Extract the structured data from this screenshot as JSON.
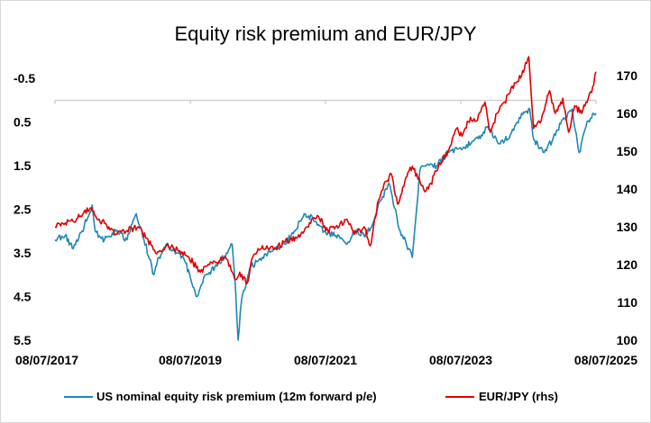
{
  "chart_data": {
    "type": "line",
    "title": "Equity risk premium and EUR/JPY",
    "x_ticks": [
      "08/07/2017",
      "08/07/2019",
      "08/07/2021",
      "08/07/2023",
      "08/07/2025"
    ],
    "y_left": {
      "inverted": true,
      "range": [
        -1.0,
        5.5
      ],
      "ticks": [
        "-0.5",
        "0.5",
        "1.5",
        "2.5",
        "3.5",
        "4.5",
        "5.5"
      ]
    },
    "y_right": {
      "range": [
        100,
        175
      ],
      "ticks": [
        "100",
        "110",
        "120",
        "130",
        "140",
        "150",
        "160",
        "170"
      ]
    },
    "legend_position": "bottom",
    "series": [
      {
        "name": "US nominal equity risk premium (12m forward p/e)",
        "axis": "left",
        "color": "#1f88b4",
        "points": [
          [
            "2017-07-08",
            3.2
          ],
          [
            "2017-09-01",
            3.1
          ],
          [
            "2017-10-15",
            3.4
          ],
          [
            "2017-12-01",
            3.0
          ],
          [
            "2018-01-25",
            2.4
          ],
          [
            "2018-02-10",
            3.0
          ],
          [
            "2018-04-01",
            3.2
          ],
          [
            "2018-06-01",
            3.0
          ],
          [
            "2018-08-01",
            3.2
          ],
          [
            "2018-09-20",
            2.6
          ],
          [
            "2018-10-20",
            3.0
          ],
          [
            "2018-12-24",
            4.0
          ],
          [
            "2019-01-20",
            3.6
          ],
          [
            "2019-03-01",
            3.3
          ],
          [
            "2019-05-01",
            3.5
          ],
          [
            "2019-06-01",
            3.6
          ],
          [
            "2019-08-15",
            4.5
          ],
          [
            "2019-10-01",
            4.0
          ],
          [
            "2019-12-01",
            3.8
          ],
          [
            "2020-01-20",
            3.5
          ],
          [
            "2020-02-20",
            3.3
          ],
          [
            "2020-03-10",
            4.4
          ],
          [
            "2020-03-23",
            5.5
          ],
          [
            "2020-04-10",
            4.6
          ],
          [
            "2020-06-01",
            3.8
          ],
          [
            "2020-08-01",
            3.6
          ],
          [
            "2020-10-01",
            3.4
          ],
          [
            "2020-12-01",
            3.3
          ],
          [
            "2021-01-20",
            3.0
          ],
          [
            "2021-03-15",
            2.6
          ],
          [
            "2021-05-01",
            2.7
          ],
          [
            "2021-07-01",
            3.0
          ],
          [
            "2021-09-01",
            3.1
          ],
          [
            "2021-11-01",
            3.3
          ],
          [
            "2021-12-15",
            3.0
          ],
          [
            "2022-02-01",
            3.1
          ],
          [
            "2022-03-15",
            2.9
          ],
          [
            "2022-05-01",
            2.3
          ],
          [
            "2022-06-16",
            1.9
          ],
          [
            "2022-08-15",
            3.0
          ],
          [
            "2022-10-01",
            3.4
          ],
          [
            "2022-10-20",
            3.6
          ],
          [
            "2022-11-30",
            1.6
          ],
          [
            "2023-01-01",
            1.5
          ],
          [
            "2023-03-01",
            1.5
          ],
          [
            "2023-05-01",
            1.2
          ],
          [
            "2023-07-01",
            1.1
          ],
          [
            "2023-09-01",
            1.0
          ],
          [
            "2023-10-27",
            0.8
          ],
          [
            "2023-12-01",
            0.6
          ],
          [
            "2024-02-01",
            1.0
          ],
          [
            "2024-04-01",
            0.8
          ],
          [
            "2024-06-01",
            0.3
          ],
          [
            "2024-07-15",
            0.2
          ],
          [
            "2024-08-05",
            0.9
          ],
          [
            "2024-10-01",
            1.2
          ],
          [
            "2024-12-01",
            0.8
          ],
          [
            "2025-01-15",
            0.4
          ],
          [
            "2025-03-01",
            0.2
          ],
          [
            "2025-04-08",
            1.2
          ],
          [
            "2025-05-15",
            0.6
          ],
          [
            "2025-06-20",
            0.3
          ],
          [
            "2025-07-08",
            0.3
          ]
        ]
      },
      {
        "name": "EUR/JPY (rhs)",
        "axis": "right",
        "color": "#e00000",
        "points": [
          [
            "2017-07-08",
            130
          ],
          [
            "2017-09-01",
            131
          ],
          [
            "2017-11-01",
            132
          ],
          [
            "2018-01-15",
            135
          ],
          [
            "2018-02-20",
            132
          ],
          [
            "2018-04-01",
            131
          ],
          [
            "2018-06-01",
            128
          ],
          [
            "2018-08-01",
            129
          ],
          [
            "2018-10-01",
            130
          ],
          [
            "2018-11-15",
            127
          ],
          [
            "2019-01-03",
            123
          ],
          [
            "2019-03-01",
            125
          ],
          [
            "2019-05-01",
            124
          ],
          [
            "2019-07-01",
            122
          ],
          [
            "2019-09-01",
            118
          ],
          [
            "2019-10-20",
            120
          ],
          [
            "2019-12-15",
            121
          ],
          [
            "2020-01-15",
            122
          ],
          [
            "2020-03-10",
            116
          ],
          [
            "2020-04-01",
            118
          ],
          [
            "2020-05-10",
            115
          ],
          [
            "2020-06-10",
            122
          ],
          [
            "2020-08-01",
            125
          ],
          [
            "2020-10-01",
            124
          ],
          [
            "2020-12-01",
            126
          ],
          [
            "2021-02-01",
            127
          ],
          [
            "2021-04-01",
            130
          ],
          [
            "2021-05-25",
            133
          ],
          [
            "2021-07-20",
            129
          ],
          [
            "2021-09-01",
            130
          ],
          [
            "2021-11-01",
            132
          ],
          [
            "2021-12-10",
            128
          ],
          [
            "2022-02-01",
            130
          ],
          [
            "2022-03-07",
            125
          ],
          [
            "2022-04-20",
            137
          ],
          [
            "2022-06-01",
            142
          ],
          [
            "2022-06-28",
            144
          ],
          [
            "2022-08-01",
            136
          ],
          [
            "2022-09-15",
            143
          ],
          [
            "2022-10-20",
            146
          ],
          [
            "2022-12-20",
            140
          ],
          [
            "2023-01-15",
            140
          ],
          [
            "2023-03-10",
            146
          ],
          [
            "2023-05-01",
            150
          ],
          [
            "2023-06-15",
            156
          ],
          [
            "2023-07-15",
            154
          ],
          [
            "2023-08-30",
            159
          ],
          [
            "2023-10-01",
            158
          ],
          [
            "2023-11-16",
            163
          ],
          [
            "2023-12-15",
            155
          ],
          [
            "2024-01-20",
            160
          ],
          [
            "2024-03-01",
            163
          ],
          [
            "2024-04-29",
            168
          ],
          [
            "2024-06-01",
            170
          ],
          [
            "2024-07-10",
            175
          ],
          [
            "2024-08-05",
            156
          ],
          [
            "2024-09-15",
            158
          ],
          [
            "2024-10-30",
            166
          ],
          [
            "2024-12-01",
            160
          ],
          [
            "2025-01-10",
            164
          ],
          [
            "2025-02-10",
            155
          ],
          [
            "2025-03-15",
            162
          ],
          [
            "2025-04-22",
            160
          ],
          [
            "2025-05-15",
            163
          ],
          [
            "2025-06-20",
            167
          ],
          [
            "2025-07-08",
            171
          ]
        ]
      }
    ]
  }
}
